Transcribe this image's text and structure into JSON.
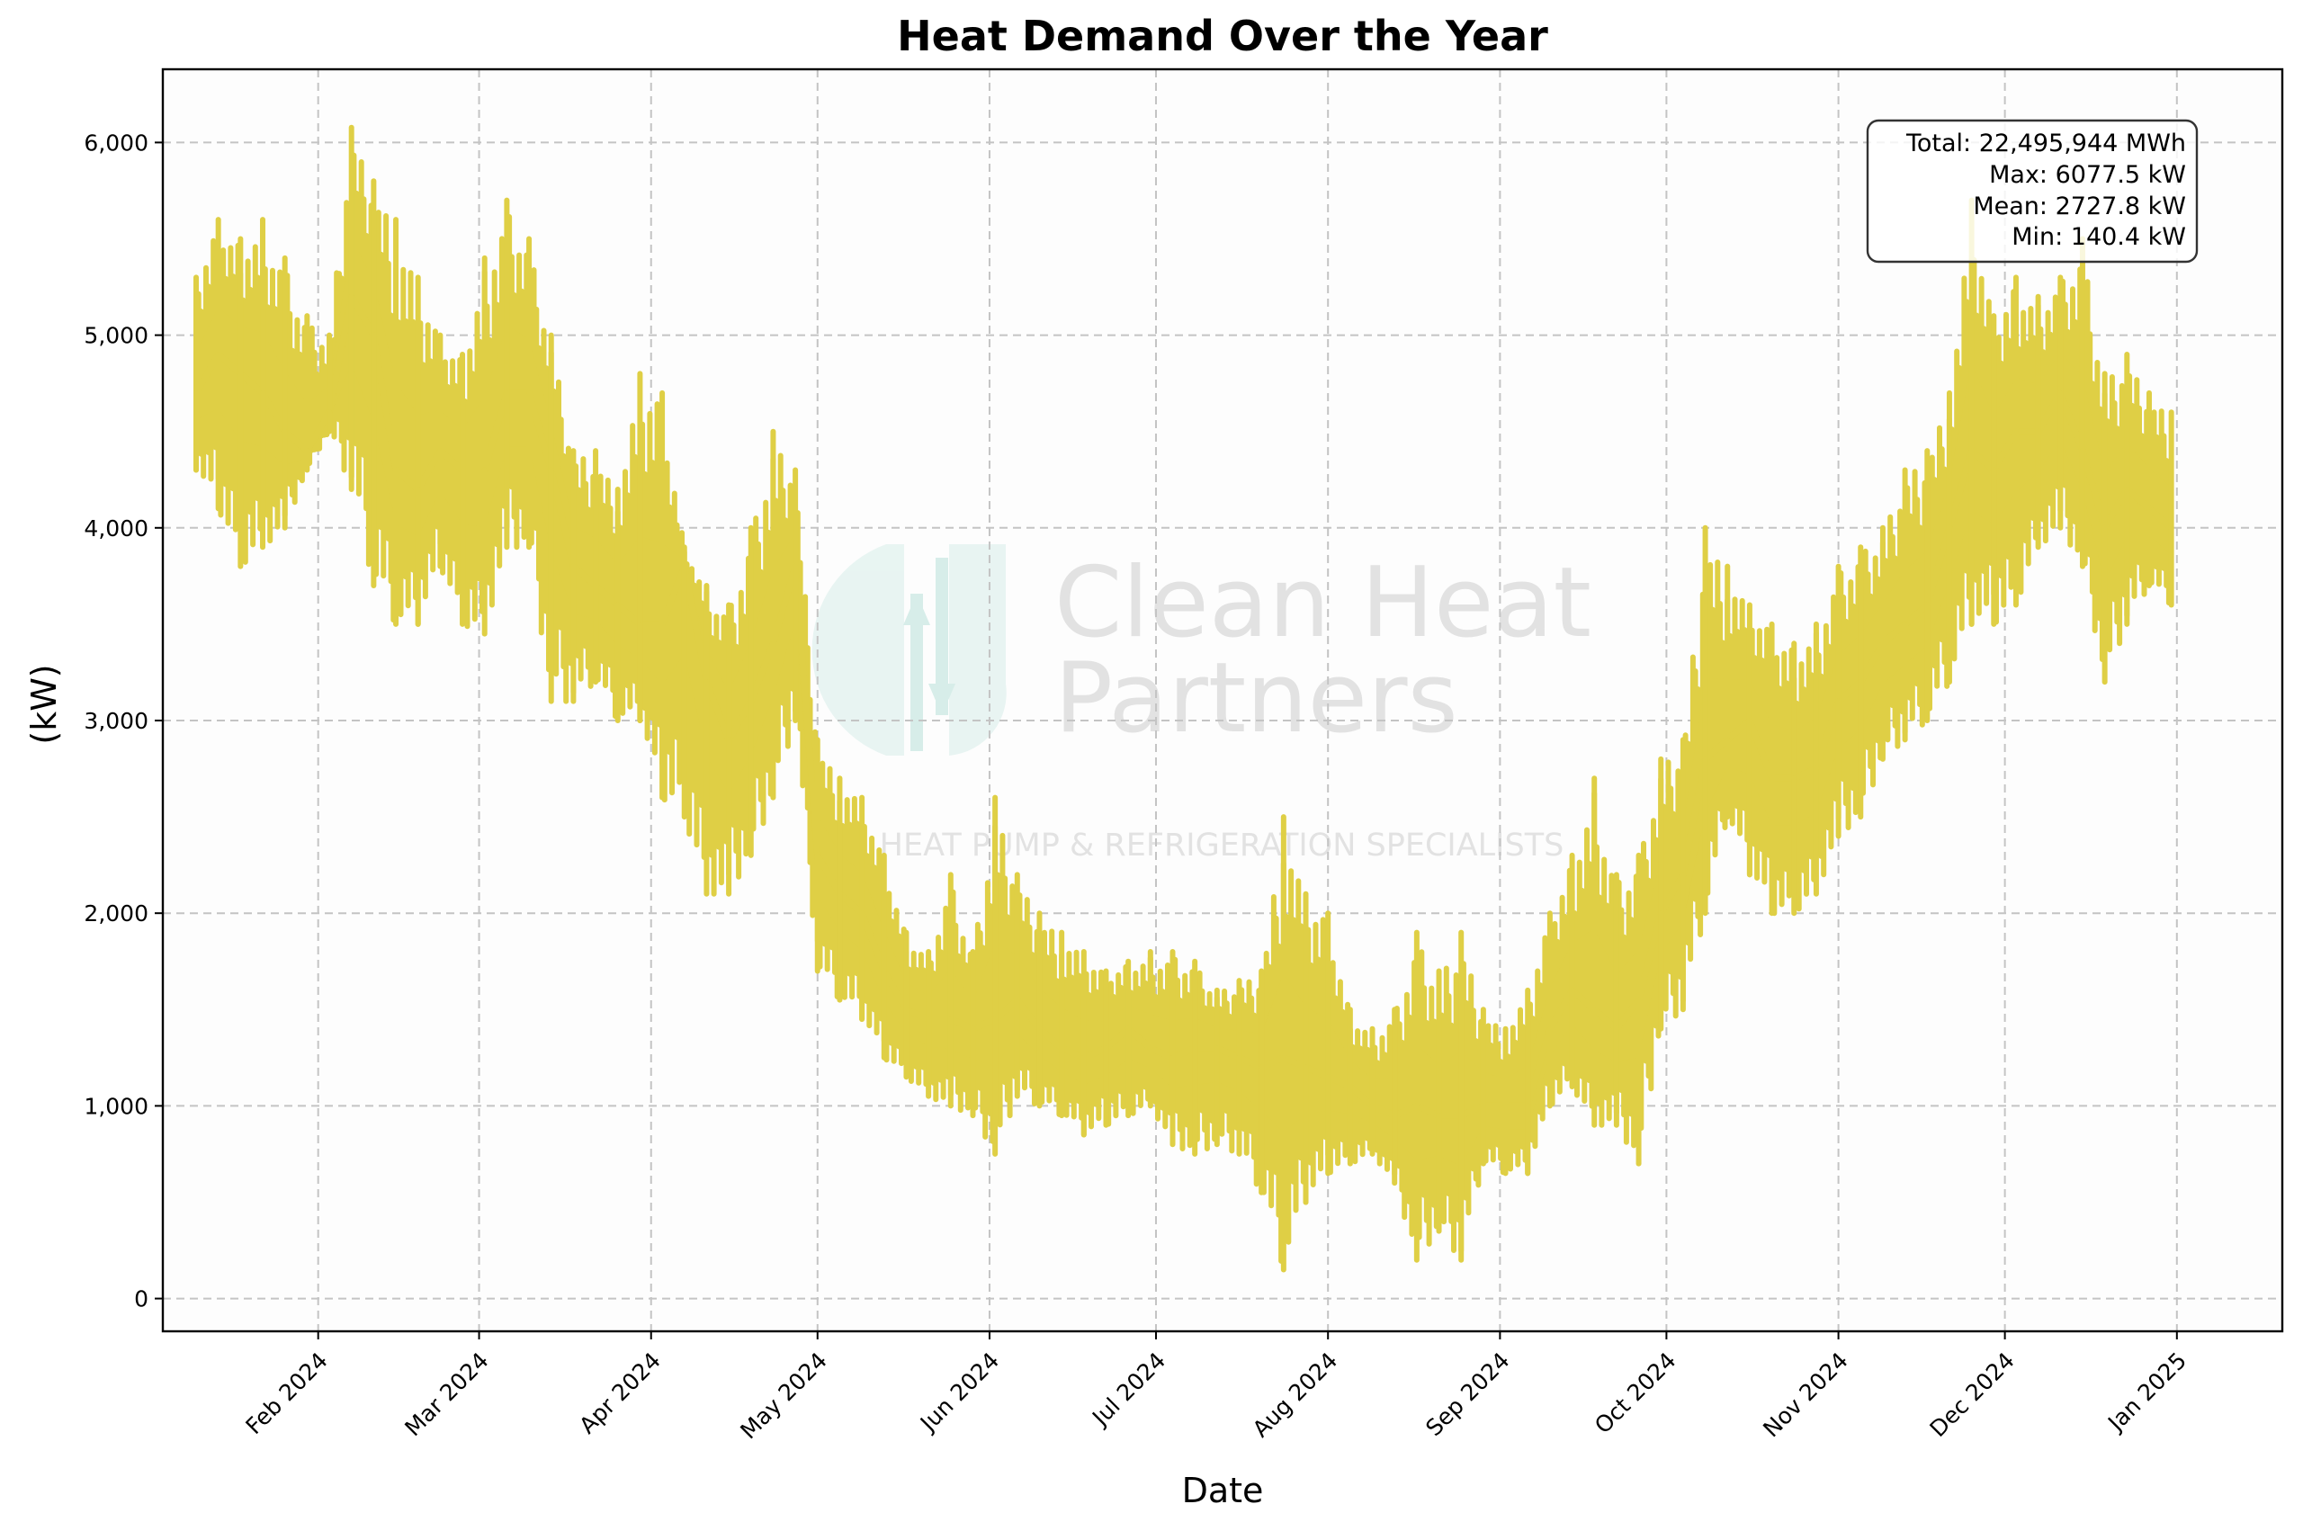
{
  "chart_data": {
    "type": "line",
    "title": "Heat Demand Over the Year",
    "xlabel": "Date",
    "ylabel": "(kW)",
    "xlim": [
      "2024-01-04",
      "2025-01-20"
    ],
    "ylim": [
      -170,
      6380
    ],
    "yticks": [
      0,
      1000,
      2000,
      3000,
      4000,
      5000,
      6000
    ],
    "ytick_labels": [
      "0",
      "1,000",
      "2,000",
      "3,000",
      "4,000",
      "5,000",
      "6,000"
    ],
    "xticks": [
      "2024-02-01",
      "2024-03-01",
      "2024-04-01",
      "2024-05-01",
      "2024-06-01",
      "2024-07-01",
      "2024-08-01",
      "2024-09-01",
      "2024-10-01",
      "2024-11-01",
      "2024-12-01",
      "2025-01-01"
    ],
    "xtick_labels": [
      "Feb 2024",
      "Mar 2024",
      "Apr 2024",
      "May 2024",
      "Jun 2024",
      "Jul 2024",
      "Aug 2024",
      "Sep 2024",
      "Oct 2024",
      "Nov 2024",
      "Dec 2024",
      "Jan 2025"
    ],
    "grid": true,
    "line_color": "#dfcf45",
    "series": [
      {
        "x": [
          "2024-01-10",
          "2024-01-14",
          "2024-01-18",
          "2024-01-22",
          "2024-01-26",
          "2024-01-30",
          "2024-02-03",
          "2024-02-07",
          "2024-02-11",
          "2024-02-15",
          "2024-02-19",
          "2024-02-23",
          "2024-02-27",
          "2024-03-02",
          "2024-03-06",
          "2024-03-10",
          "2024-03-14",
          "2024-03-18",
          "2024-03-22",
          "2024-03-26",
          "2024-03-30",
          "2024-04-03",
          "2024-04-07",
          "2024-04-11",
          "2024-04-15",
          "2024-04-19",
          "2024-04-23",
          "2024-04-27",
          "2024-05-01",
          "2024-05-05",
          "2024-05-09",
          "2024-05-13",
          "2024-05-17",
          "2024-05-21",
          "2024-05-25",
          "2024-05-29",
          "2024-06-02",
          "2024-06-06",
          "2024-06-10",
          "2024-06-14",
          "2024-06-18",
          "2024-06-22",
          "2024-06-26",
          "2024-06-30",
          "2024-07-04",
          "2024-07-08",
          "2024-07-12",
          "2024-07-16",
          "2024-07-20",
          "2024-07-24",
          "2024-07-28",
          "2024-08-01",
          "2024-08-05",
          "2024-08-09",
          "2024-08-13",
          "2024-08-17",
          "2024-08-21",
          "2024-08-25",
          "2024-08-29",
          "2024-09-02",
          "2024-09-06",
          "2024-09-10",
          "2024-09-14",
          "2024-09-18",
          "2024-09-22",
          "2024-09-26",
          "2024-09-30",
          "2024-10-04",
          "2024-10-08",
          "2024-10-12",
          "2024-10-16",
          "2024-10-20",
          "2024-10-24",
          "2024-10-28",
          "2024-11-01",
          "2024-11-05",
          "2024-11-09",
          "2024-11-13",
          "2024-11-17",
          "2024-11-21",
          "2024-11-25",
          "2024-11-29",
          "2024-12-03",
          "2024-12-07",
          "2024-12-11",
          "2024-12-15",
          "2024-12-19",
          "2024-12-23",
          "2024-12-27",
          "2024-12-31"
        ],
        "values": [
          4700,
          4900,
          4800,
          4700,
          4500,
          4400,
          4600,
          5200,
          5000,
          4300,
          4200,
          4400,
          4300,
          4300,
          4700,
          4700,
          4300,
          3800,
          3700,
          3600,
          3500,
          3500,
          3800,
          3200,
          2900,
          3100,
          3400,
          3800,
          2300,
          2100,
          2000,
          1700,
          1500,
          1450,
          1450,
          1400,
          1450,
          1550,
          1400,
          1300,
          1250,
          1300,
          1400,
          1300,
          1250,
          1300,
          1300,
          1250,
          1200,
          1250,
          1200,
          1150,
          1100,
          1000,
          950,
          1000,
          950,
          950,
          1000,
          1000,
          1000,
          1400,
          1600,
          1500,
          1400,
          1550,
          2000,
          2200,
          2800,
          2900,
          3000,
          2700,
          2700,
          2750,
          3100,
          3200,
          3400,
          3500,
          3600,
          4000,
          4400,
          4300,
          4500,
          4500,
          4700,
          4400,
          4000,
          4200,
          4100,
          4000
        ],
        "min_envelope": [
          4300,
          4100,
          3800,
          3900,
          4000,
          4300,
          4500,
          4200,
          3700,
          3500,
          3500,
          3800,
          3500,
          3450,
          3900,
          3900,
          3100,
          3100,
          3200,
          3000,
          3000,
          2600,
          2500,
          2100,
          2100,
          2300,
          2600,
          3000,
          1700,
          1550,
          1450,
          1250,
          1150,
          1050,
          1000,
          950,
          750,
          1050,
          1000,
          950,
          850,
          900,
          950,
          1000,
          800,
          750,
          800,
          750,
          550,
          150,
          500,
          650,
          700,
          750,
          600,
          200,
          350,
          200,
          700,
          650,
          650,
          1000,
          1100,
          900,
          900,
          700,
          1400,
          1500,
          2000,
          2500,
          2200,
          2000,
          2000,
          2100,
          2400,
          2500,
          2800,
          2900,
          3000,
          3200,
          3500,
          3500,
          3600,
          3900,
          4000,
          3800,
          3200,
          3500,
          3700,
          3600
        ],
        "max_envelope": [
          5300,
          5600,
          5500,
          5600,
          5400,
          5100,
          5000,
          6077.5,
          5800,
          5600,
          5300,
          5000,
          4900,
          5400,
          5700,
          5500,
          5000,
          4400,
          4400,
          4200,
          4800,
          4700,
          3900,
          3700,
          3600,
          4000,
          4500,
          4300,
          2900,
          2700,
          2600,
          2300,
          1900,
          1800,
          2200,
          1800,
          2600,
          2200,
          2000,
          1900,
          1800,
          1700,
          1750,
          1800,
          1800,
          1750,
          1600,
          1650,
          1700,
          2500,
          2100,
          2000,
          1500,
          1400,
          1500,
          1900,
          1700,
          1900,
          1500,
          1400,
          1600,
          2000,
          2300,
          2700,
          2200,
          2300,
          2800,
          2900,
          4000,
          3800,
          3600,
          3500,
          3400,
          3500,
          3800,
          3900,
          4000,
          4300,
          4400,
          4700,
          5700,
          5100,
          5300,
          5200,
          5300,
          5500,
          4800,
          4900,
          4700,
          4600
        ]
      }
    ]
  },
  "stats_box": {
    "total": "Total: 22,495,944 MWh",
    "max": "Max: 6077.5 kW",
    "mean": "Mean: 2727.8 kW",
    "min": "Min: 140.4 kW"
  },
  "watermark": {
    "line1": "Clean Heat",
    "line2": "Partners",
    "tagline": "HEAT PUMP & REFRIGERATION SPECIALISTS"
  }
}
